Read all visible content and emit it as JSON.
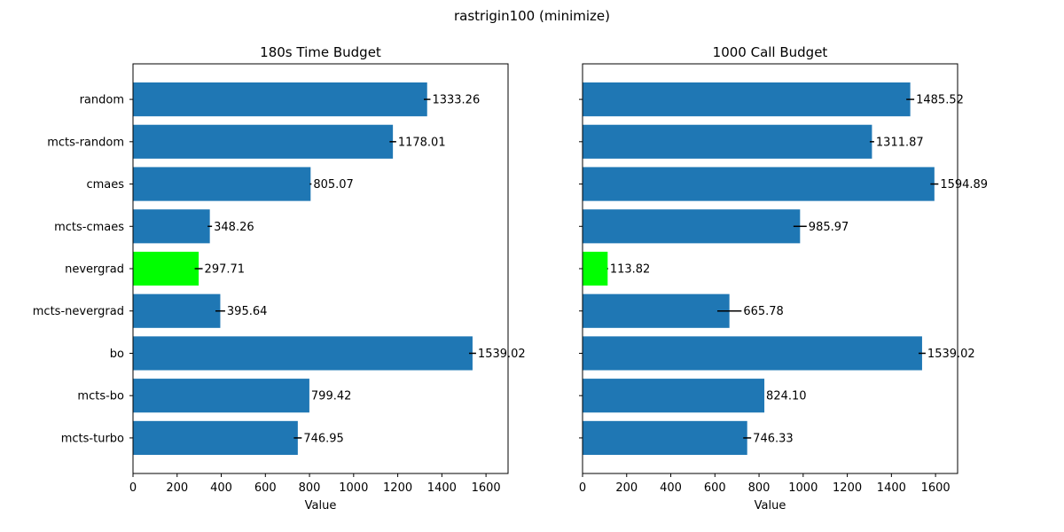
{
  "figure": {
    "title": "rastrigin100 (minimize)"
  },
  "colors": {
    "bar_default": "#1f77b4",
    "bar_highlight": "#00ff00",
    "error_bar": "#000000",
    "spine": "#000000"
  },
  "chart_data": [
    {
      "type": "bar",
      "orientation": "horizontal",
      "title": "180s Time Budget",
      "xlabel": "Value",
      "ylabel": "",
      "xlim": [
        0,
        1700
      ],
      "xticks": [
        0,
        200,
        400,
        600,
        800,
        1000,
        1200,
        1400,
        1600
      ],
      "show_category_labels": true,
      "categories": [
        "random",
        "mcts-random",
        "cmaes",
        "mcts-cmaes",
        "nevergrad",
        "mcts-nevergrad",
        "bo",
        "mcts-bo",
        "mcts-turbo"
      ],
      "values": [
        1333.26,
        1178.01,
        805.07,
        348.26,
        297.71,
        395.64,
        1539.02,
        799.42,
        746.95
      ],
      "value_labels": [
        "1333.26",
        "1178.01",
        "805.07",
        "348.26",
        "297.71",
        "395.64",
        "1539.02",
        "799.42",
        "746.95"
      ],
      "errors": [
        15,
        15,
        4,
        10,
        18,
        22,
        16,
        0,
        18
      ],
      "highlight": "nevergrad",
      "grid": false
    },
    {
      "type": "bar",
      "orientation": "horizontal",
      "title": "1000 Call Budget",
      "xlabel": "Value",
      "ylabel": "",
      "xlim": [
        0,
        1700
      ],
      "xticks": [
        0,
        200,
        400,
        600,
        800,
        1000,
        1200,
        1400,
        1600
      ],
      "show_category_labels": false,
      "categories": [
        "random",
        "mcts-random",
        "cmaes",
        "mcts-cmaes",
        "nevergrad",
        "mcts-nevergrad",
        "bo",
        "mcts-bo",
        "mcts-turbo"
      ],
      "values": [
        1485.52,
        1311.87,
        1594.89,
        985.97,
        113.82,
        665.78,
        1539.02,
        824.1,
        746.33
      ],
      "value_labels": [
        "1485.52",
        "1311.87",
        "1594.89",
        "985.97",
        "113.82",
        "665.78",
        "1539.02",
        "824.10",
        "746.33"
      ],
      "errors": [
        18,
        10,
        18,
        30,
        2,
        55,
        16,
        0,
        18
      ],
      "highlight": "nevergrad",
      "grid": false
    }
  ]
}
